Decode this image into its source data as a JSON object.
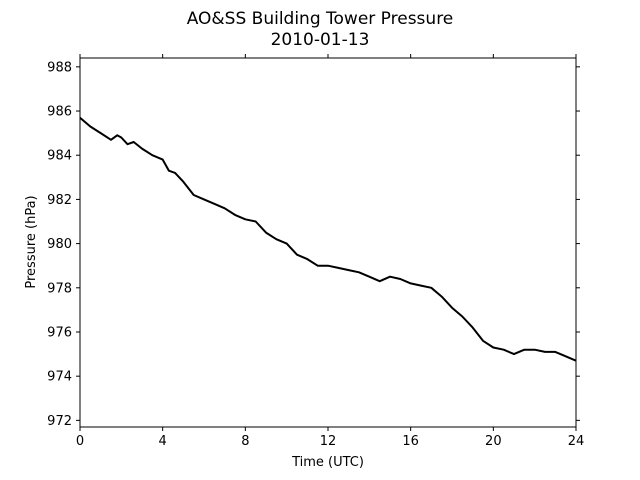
{
  "chart_data": {
    "type": "line",
    "title": "AO&SS Building Tower Pressure",
    "subtitle": "2010-01-13",
    "xlabel": "Time (UTC)",
    "ylabel": "Pressure (hPa)",
    "xlim": [
      0,
      24
    ],
    "ylim": [
      971.7,
      988.4
    ],
    "x_ticks": [
      0,
      4,
      8,
      12,
      16,
      20,
      24
    ],
    "y_ticks": [
      972,
      974,
      976,
      978,
      980,
      982,
      984,
      986,
      988
    ],
    "grid": false,
    "line_color": "#000000",
    "series": [
      {
        "x": [
          0,
          0.5,
          1,
          1.5,
          1.8,
          2,
          2.3,
          2.6,
          3,
          3.5,
          4,
          4.3,
          4.6,
          5,
          5.5,
          6,
          6.5,
          7,
          7.5,
          8,
          8.5,
          9,
          9.5,
          10,
          10.5,
          11,
          11.5,
          12,
          12.5,
          13,
          13.5,
          14,
          14.5,
          15,
          15.5,
          16,
          16.5,
          17,
          17.5,
          18,
          18.5,
          19,
          19.5,
          20,
          20.5,
          21,
          21.5,
          22,
          22.5,
          23,
          23.5,
          24
        ],
        "y": [
          985.7,
          985.3,
          985.0,
          984.7,
          984.9,
          984.8,
          984.5,
          984.6,
          984.3,
          984.0,
          983.8,
          983.3,
          983.2,
          982.8,
          982.2,
          982.0,
          981.8,
          981.6,
          981.3,
          981.1,
          981.0,
          980.5,
          980.2,
          980.0,
          979.5,
          979.3,
          979.0,
          979.0,
          978.9,
          978.8,
          978.7,
          978.5,
          978.3,
          978.5,
          978.4,
          978.2,
          978.1,
          978.0,
          977.6,
          977.1,
          976.7,
          976.2,
          975.6,
          975.3,
          975.2,
          975.0,
          975.2,
          975.2,
          975.1,
          975.1,
          974.9,
          974.7
        ]
      }
    ]
  }
}
